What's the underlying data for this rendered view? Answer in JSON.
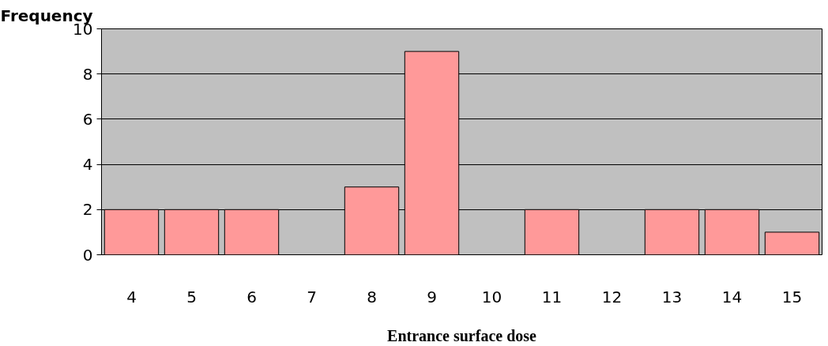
{
  "chart_data": {
    "type": "bar",
    "ylabel": "Frequency",
    "xlabel": "Entrance surface dose",
    "categories": [
      "4",
      "5",
      "6",
      "7",
      "8",
      "9",
      "10",
      "11",
      "12",
      "13",
      "14",
      "15"
    ],
    "values": [
      2,
      2,
      2,
      0,
      3,
      9,
      0,
      2,
      0,
      2,
      2,
      1
    ],
    "color": "#ff9999",
    "ylim": [
      0,
      10
    ],
    "yticks": [
      0,
      2,
      4,
      6,
      8,
      10
    ],
    "grid": "y"
  }
}
